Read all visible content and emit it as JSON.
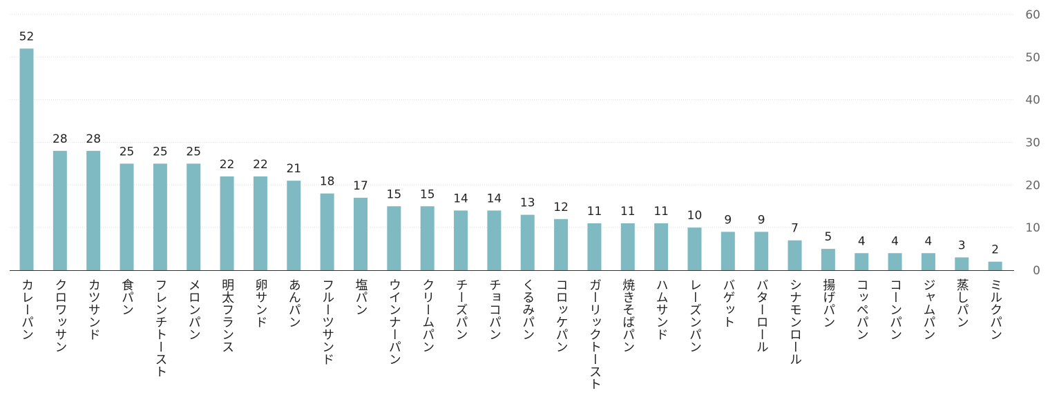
{
  "chart_data": {
    "type": "bar",
    "categories": [
      "カレーパン",
      "クロワッサン",
      "カツサンド",
      "食パン",
      "フレンチトースト",
      "メロンパン",
      "明太フランス",
      "卵サンド",
      "あんパン",
      "フルーツサンド",
      "塩パン",
      "ウインナーパン",
      "クリームパン",
      "チーズパン",
      "チョコパン",
      "くるみパン",
      "コロッケパン",
      "ガーリックトースト",
      "焼きそばパン",
      "ハムサンド",
      "レーズンパン",
      "バゲット",
      "バターロール",
      "シナモンロール",
      "揚げパン",
      "コッペパン",
      "コーンパン",
      "ジャムパン",
      "蒸しパン",
      "ミルクパン"
    ],
    "values": [
      52,
      28,
      28,
      25,
      25,
      25,
      22,
      22,
      21,
      18,
      17,
      15,
      15,
      14,
      14,
      13,
      12,
      11,
      11,
      11,
      10,
      9,
      9,
      7,
      5,
      4,
      4,
      4,
      3,
      2
    ],
    "ylim": [
      0,
      60
    ],
    "yticks": [
      0,
      10,
      20,
      30,
      40,
      50,
      60
    ],
    "y_axis_side": "right",
    "data_labels": true,
    "grid": true,
    "bar_color": "#7fbac2",
    "title": "",
    "xlabel": "",
    "ylabel": ""
  }
}
